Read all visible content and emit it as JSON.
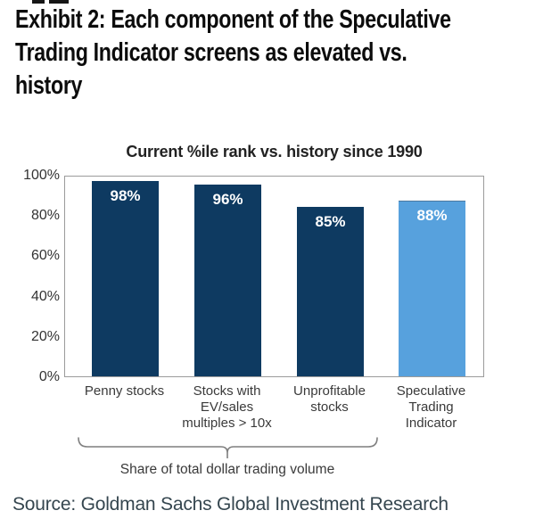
{
  "header": {
    "lines": [
      "Exhibit 2: Each component of the Speculative",
      "Trading Indicator screens as elevated vs.",
      "history"
    ]
  },
  "chart_data": {
    "type": "bar",
    "title": "Current %ile rank vs. history since 1990",
    "categories": [
      "Penny stocks",
      "Stocks with EV/sales multiples > 10x",
      "Unprofitable stocks",
      "Speculative Trading Indicator"
    ],
    "category_label_lines": [
      [
        "Penny stocks"
      ],
      [
        "Stocks with",
        "EV/sales",
        "multiples > 10x"
      ],
      [
        "Unprofitable",
        "stocks"
      ],
      [
        "Speculative",
        "Trading",
        "Indicator"
      ]
    ],
    "values": [
      98,
      96,
      85,
      88
    ],
    "value_labels": [
      "98%",
      "96%",
      "85%",
      "88%"
    ],
    "bar_colors": [
      "#0E3A61",
      "#0E3A61",
      "#0E3A61",
      "#57A1DD"
    ],
    "ylim": [
      0,
      100
    ],
    "yticks": [
      "100%",
      "80%",
      "60%",
      "40%",
      "20%",
      "0%"
    ],
    "grid": false,
    "legend": false,
    "bracket_label": "Share of total dollar trading volume",
    "bracket_spans_categories": [
      "Penny stocks",
      "Stocks with EV/sales multiples > 10x",
      "Unprofitable stocks"
    ]
  },
  "source_line": "Source: Goldman Sachs Global Investment Research",
  "colors": {
    "bar_navy": "#0E3A61",
    "bar_light_blue": "#57A1DD",
    "plot_border": "#9B9B9B",
    "bracket": "#7F7F7F",
    "axis_text": "#333333",
    "header_text": "#0C0C0C",
    "source_text": "#35464F"
  }
}
